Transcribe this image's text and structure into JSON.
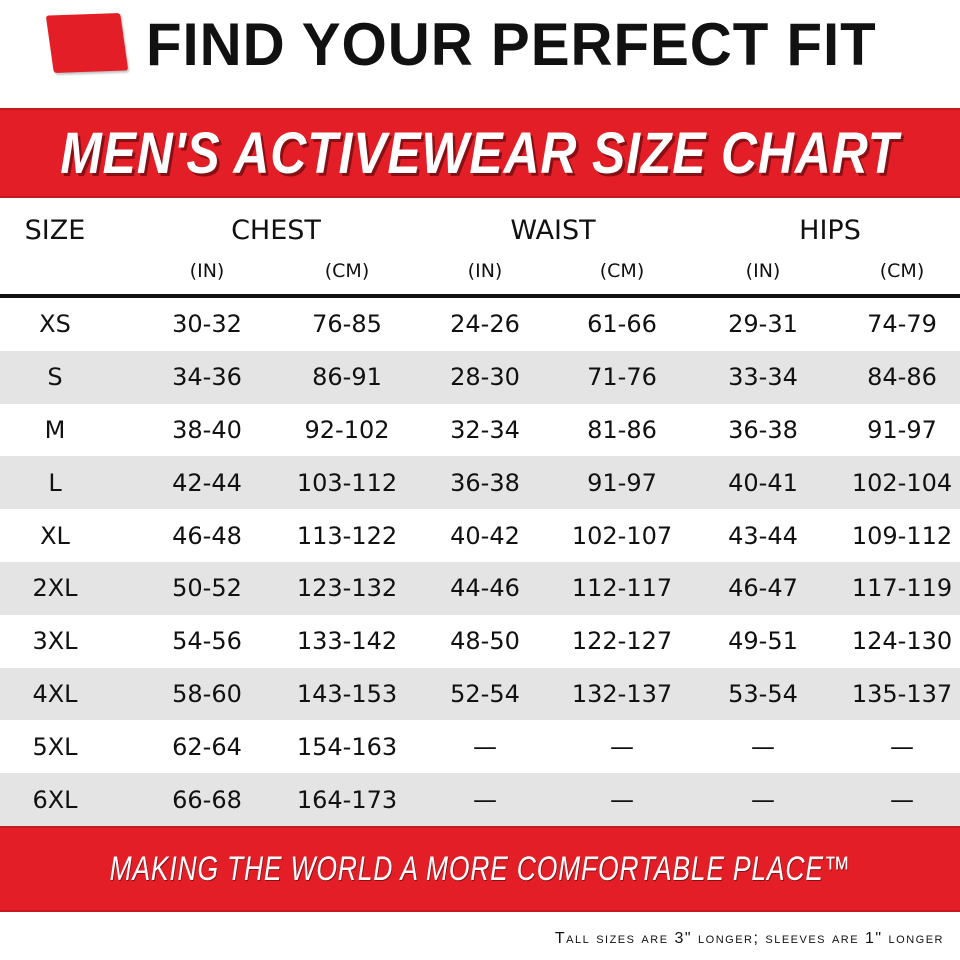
{
  "header": {
    "title": "FIND YOUR PERFECT FIT",
    "banner": "MEN'S ACTIVEWEAR SIZE CHART"
  },
  "table": {
    "columns": {
      "size": "SIZE",
      "chest": "CHEST",
      "waist": "WAIST",
      "hips": "HIPS",
      "in": "(IN)",
      "cm": "(CM)"
    },
    "rows": [
      [
        "XS",
        "30-32",
        "76-85",
        "24-26",
        "61-66",
        "29-31",
        "74-79"
      ],
      [
        "S",
        "34-36",
        "86-91",
        "28-30",
        "71-76",
        "33-34",
        "84-86"
      ],
      [
        "M",
        "38-40",
        "92-102",
        "32-34",
        "81-86",
        "36-38",
        "91-97"
      ],
      [
        "L",
        "42-44",
        "103-112",
        "36-38",
        "91-97",
        "40-41",
        "102-104"
      ],
      [
        "XL",
        "46-48",
        "113-122",
        "40-42",
        "102-107",
        "43-44",
        "109-112"
      ],
      [
        "2XL",
        "50-52",
        "123-132",
        "44-46",
        "112-117",
        "46-47",
        "117-119"
      ],
      [
        "3XL",
        "54-56",
        "133-142",
        "48-50",
        "122-127",
        "49-51",
        "124-130"
      ],
      [
        "4XL",
        "58-60",
        "143-153",
        "52-54",
        "132-137",
        "53-54",
        "135-137"
      ],
      [
        "5XL",
        "62-64",
        "154-163",
        "—",
        "—",
        "—",
        "—"
      ],
      [
        "6XL",
        "66-68",
        "164-173",
        "—",
        "—",
        "—",
        "—"
      ]
    ]
  },
  "footer": {
    "tagline": "MAKING THE WORLD A MORE COMFORTABLE PLACE™",
    "note": "Tall sizes are 3\" longer; sleeves are 1\" longer"
  },
  "colors": {
    "brand_red": "#e41e26",
    "row_alt": "#e4e4e4"
  }
}
